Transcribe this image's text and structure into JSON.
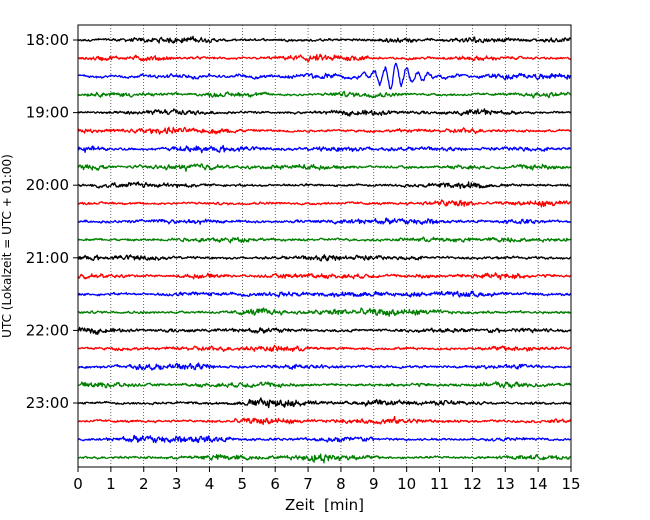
{
  "chart_data": {
    "type": "line",
    "title": "",
    "xlabel": "Zeit  [min]",
    "ylabel": "UTC (Lokalzeit = UTC + 01:00)",
    "xlim": [
      0,
      15
    ],
    "x_ticks": [
      0,
      1,
      2,
      3,
      4,
      5,
      6,
      7,
      8,
      9,
      10,
      11,
      12,
      13,
      14,
      15
    ],
    "y_ticks": [
      "18:00",
      "19:00",
      "20:00",
      "21:00",
      "22:00",
      "23:00"
    ],
    "trace_interval_min": 15,
    "start_time": "18:00",
    "trace_count": 24,
    "trace_colors": [
      "#000000",
      "#ff0000",
      "#0000ff",
      "#008000"
    ],
    "grid": {
      "x": "dotted",
      "y": "none"
    },
    "event": {
      "trace_label": "18:30",
      "start_min": 8.2,
      "peak_min": 9.6,
      "end_min": 11.5,
      "relative_amplitude": 3.5
    },
    "series": [
      {
        "time": "18:00",
        "color": "#000000"
      },
      {
        "time": "18:15",
        "color": "#ff0000"
      },
      {
        "time": "18:30",
        "color": "#0000ff"
      },
      {
        "time": "18:45",
        "color": "#008000"
      },
      {
        "time": "19:00",
        "color": "#000000"
      },
      {
        "time": "19:15",
        "color": "#ff0000"
      },
      {
        "time": "19:30",
        "color": "#0000ff"
      },
      {
        "time": "19:45",
        "color": "#008000"
      },
      {
        "time": "20:00",
        "color": "#000000"
      },
      {
        "time": "20:15",
        "color": "#ff0000"
      },
      {
        "time": "20:30",
        "color": "#0000ff"
      },
      {
        "time": "20:45",
        "color": "#008000"
      },
      {
        "time": "21:00",
        "color": "#000000"
      },
      {
        "time": "21:15",
        "color": "#ff0000"
      },
      {
        "time": "21:30",
        "color": "#0000ff"
      },
      {
        "time": "21:45",
        "color": "#008000"
      },
      {
        "time": "22:00",
        "color": "#000000"
      },
      {
        "time": "22:15",
        "color": "#ff0000"
      },
      {
        "time": "22:30",
        "color": "#0000ff"
      },
      {
        "time": "22:45",
        "color": "#008000"
      },
      {
        "time": "23:00",
        "color": "#000000"
      },
      {
        "time": "23:15",
        "color": "#ff0000"
      },
      {
        "time": "23:30",
        "color": "#0000ff"
      },
      {
        "time": "23:45",
        "color": "#008000"
      }
    ]
  }
}
